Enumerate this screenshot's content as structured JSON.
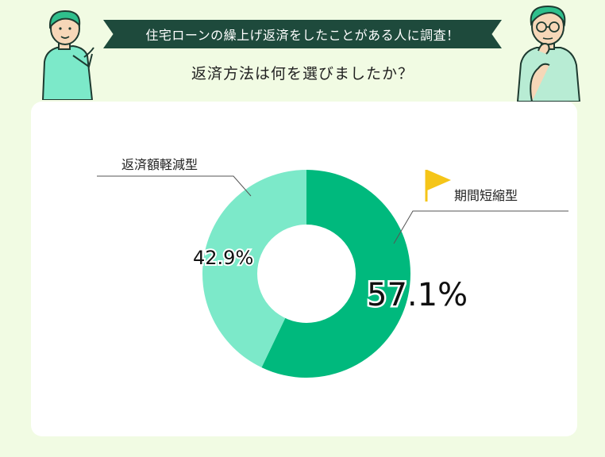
{
  "header": {
    "banner_text": "住宅ローンの繰上げ返済をしたことがある人に調査！",
    "question": "返済方法は何を選びましたか？"
  },
  "colors": {
    "background": "#f1fbe3",
    "banner": "#1e4a3c",
    "dark_green": "#00b97d",
    "light_green": "#7ce9c9",
    "flag": "#f5c518"
  },
  "chart_data": {
    "type": "pie",
    "categories": [
      "期間短縮型",
      "返済額軽減型"
    ],
    "values": [
      57.1,
      42.9
    ],
    "labels": [
      "57.1%",
      "42.9%"
    ],
    "colors": [
      "#00b97d",
      "#7ce9c9"
    ],
    "donut": true
  }
}
